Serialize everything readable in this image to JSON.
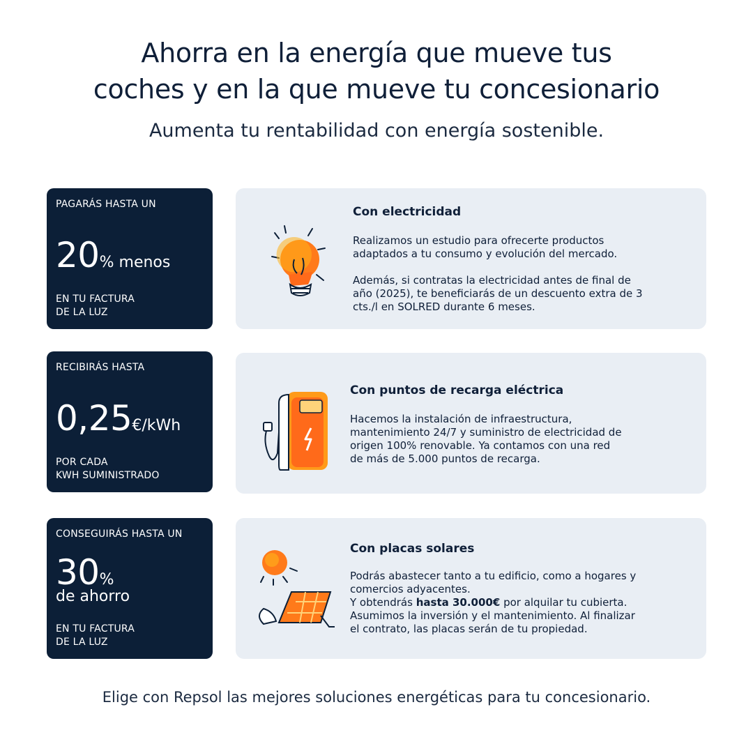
{
  "header": {
    "title_line1": "Ahorra en la energía que mueve tus",
    "title_line2": "coches y en la que mueve tu concesionario",
    "subtitle": "Aumenta tu rentabilidad con energía sostenible."
  },
  "stats": [
    {
      "top": "PAGARÁS HASTA UN",
      "number": "20",
      "unit": "% menos",
      "bottom_line1": "EN TU FACTURA",
      "bottom_line2": "DE LA LUZ"
    },
    {
      "top": "RECIBIRÁS HASTA",
      "number": "0,25",
      "unit": "€/kWh",
      "bottom_line1": "POR CADA",
      "bottom_line2": "KWH SUMINISTRADO"
    },
    {
      "top": "CONSEGUIRÁS HASTA UN",
      "number": "30",
      "unit": "%",
      "unit_line2": "de ahorro",
      "bottom_line1": "EN TU FACTURA",
      "bottom_line2": "DE LA LUZ"
    }
  ],
  "cards": [
    {
      "icon": "lightbulb-icon",
      "title": "Con electricidad",
      "p1_l1": "Realizamos un estudio para ofrecerte productos",
      "p1_l2": "adaptados a tu consumo y evolución del mercado.",
      "p2_l1": "Además, si contratas la electricidad antes de final de",
      "p2_l2": "año (2025), te beneficiarás de un descuento extra de 3",
      "p2_l3": "cts./l en SOLRED durante 6 meses."
    },
    {
      "icon": "charging-station-icon",
      "title": "Con puntos de recarga eléctrica",
      "l1": "Hacemos la instalación de infraestructura,",
      "l2": "mantenimiento 24/7 y suministro de electricidad de",
      "l3": "origen 100% renovable. Ya contamos con una red",
      "l4": "de más de 5.000 puntos de recarga."
    },
    {
      "icon": "solar-panel-icon",
      "title": "Con placas solares",
      "l1": "Podrás abastecer tanto a tu edificio, como a hogares y",
      "l2": "comercios adyacentes.",
      "l3_pre": "Y obtendrás ",
      "l3_bold": "hasta 30.000€",
      "l3_post": " por alquilar tu cubierta.",
      "l4": "Asumimos la inversión y el mantenimiento. Al finalizar",
      "l5": "el contrato, las placas serán de tu propiedad."
    }
  ],
  "footer": "Elige con Repsol las mejores soluciones energéticas para tu concesionario.",
  "colors": {
    "navy": "#0c1f37",
    "card_bg": "#e9eef4",
    "orange": "#ff6a1a",
    "yellow": "#ffc21a"
  }
}
